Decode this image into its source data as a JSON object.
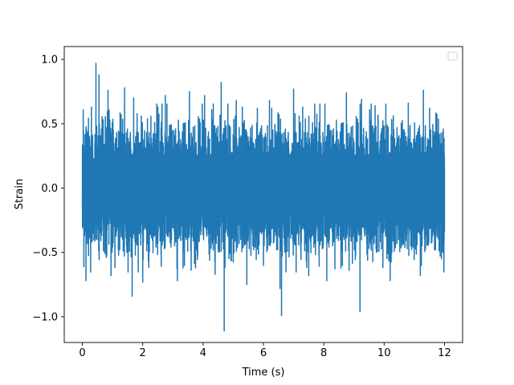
{
  "chart_data": {
    "type": "line",
    "title": "",
    "xlabel": "Time (s)",
    "ylabel": "Strain",
    "xlim": [
      -0.6,
      12.6
    ],
    "ylim": [
      -1.2,
      1.1
    ],
    "x_ticks": [
      0,
      2,
      4,
      6,
      8,
      10,
      12
    ],
    "x_tick_labels": [
      "0",
      "2",
      "4",
      "6",
      "8",
      "10",
      "12"
    ],
    "y_ticks": [
      -1.0,
      -0.5,
      0.0,
      0.5,
      1.0
    ],
    "y_tick_labels": [
      "−1.0",
      "−0.5",
      "0.0",
      "0.5",
      "1.0"
    ],
    "grid": false,
    "legend": {
      "position": "top-right",
      "entries": []
    },
    "series": [
      {
        "color": "#1f77b4",
        "sample_rate_hz": 1000,
        "x_start": 0.0,
        "x_end": 12.0,
        "typical_envelope": [
          -0.45,
          0.45
        ],
        "peaks": [
          {
            "x": 0.05,
            "y": 0.77
          },
          {
            "x": 0.05,
            "y": -0.61
          },
          {
            "x": 0.12,
            "y": -0.72
          },
          {
            "x": 0.3,
            "y": 0.63
          },
          {
            "x": 0.45,
            "y": 0.97
          },
          {
            "x": 0.55,
            "y": 0.88
          },
          {
            "x": 0.85,
            "y": 0.76
          },
          {
            "x": 0.95,
            "y": -0.68
          },
          {
            "x": 1.4,
            "y": 0.78
          },
          {
            "x": 1.7,
            "y": -0.62
          },
          {
            "x": 1.7,
            "y": 0.7
          },
          {
            "x": 1.65,
            "y": -0.84
          },
          {
            "x": 2.0,
            "y": -0.73
          },
          {
            "x": 2.5,
            "y": 0.63
          },
          {
            "x": 2.75,
            "y": 0.72
          },
          {
            "x": 3.15,
            "y": -0.72
          },
          {
            "x": 3.55,
            "y": 0.75
          },
          {
            "x": 3.75,
            "y": -0.62
          },
          {
            "x": 4.05,
            "y": 0.72
          },
          {
            "x": 4.4,
            "y": 0.81
          },
          {
            "x": 4.6,
            "y": 0.82
          },
          {
            "x": 4.4,
            "y": -0.67
          },
          {
            "x": 4.7,
            "y": -1.11
          },
          {
            "x": 5.1,
            "y": 0.68
          },
          {
            "x": 5.3,
            "y": 0.63
          },
          {
            "x": 5.45,
            "y": -0.75
          },
          {
            "x": 5.8,
            "y": 0.62
          },
          {
            "x": 6.2,
            "y": 0.68
          },
          {
            "x": 6.55,
            "y": 1.0
          },
          {
            "x": 6.55,
            "y": -0.78
          },
          {
            "x": 6.6,
            "y": -0.99
          },
          {
            "x": 7.0,
            "y": 0.77
          },
          {
            "x": 7.3,
            "y": 0.63
          },
          {
            "x": 7.5,
            "y": -0.68
          },
          {
            "x": 8.1,
            "y": 0.68
          },
          {
            "x": 8.1,
            "y": -0.72
          },
          {
            "x": 8.75,
            "y": 0.74
          },
          {
            "x": 9.2,
            "y": -0.96
          },
          {
            "x": 9.25,
            "y": 0.69
          },
          {
            "x": 9.7,
            "y": 0.64
          },
          {
            "x": 10.2,
            "y": 0.68
          },
          {
            "x": 10.2,
            "y": -0.72
          },
          {
            "x": 10.8,
            "y": 0.66
          },
          {
            "x": 11.2,
            "y": -0.68
          },
          {
            "x": 11.3,
            "y": 0.76
          },
          {
            "x": 11.9,
            "y": -0.55
          }
        ]
      }
    ]
  }
}
